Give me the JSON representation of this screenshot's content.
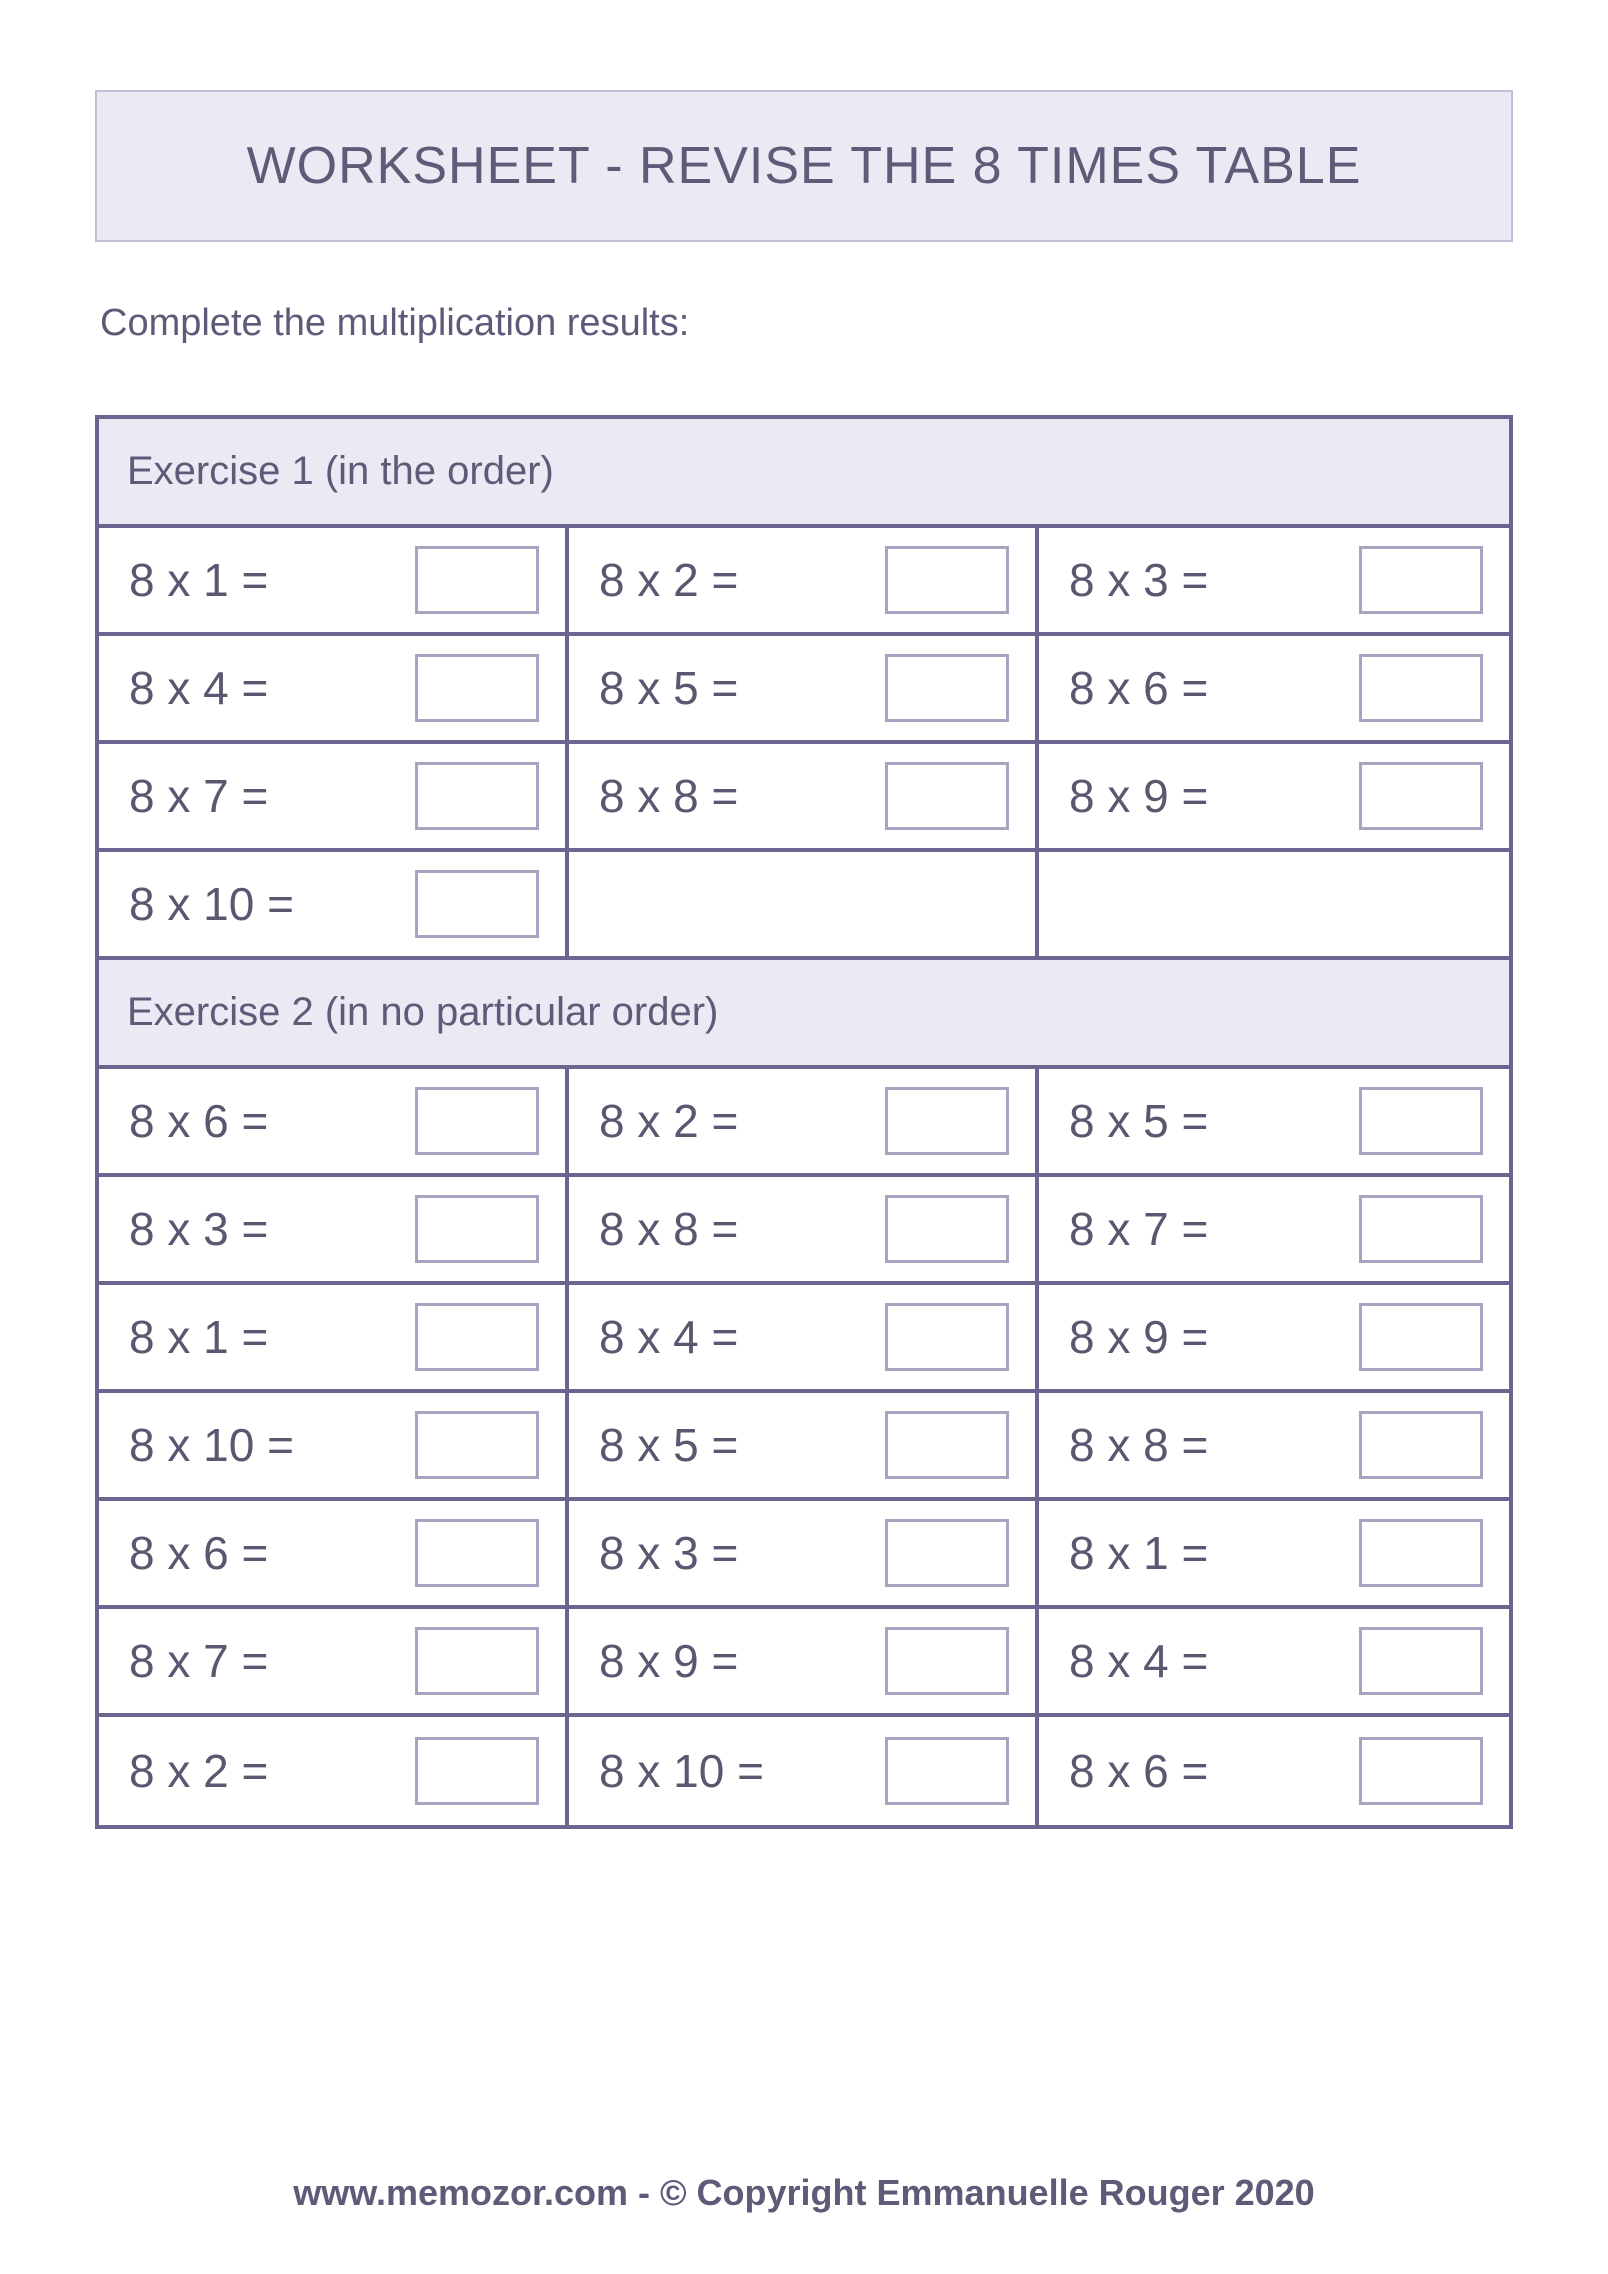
{
  "title": "WORKSHEET - REVISE THE 8 TIMES TABLE",
  "instructions": "Complete the multiplication results:",
  "colors": {
    "header_bg": "#ebe9f4",
    "header_border": "#c2bed8",
    "table_border": "#6c6592",
    "answer_box_border": "#a8a3c1",
    "text": "#5e5b78",
    "background": "#ffffff"
  },
  "typography": {
    "title_fontsize": 52,
    "title_weight": 400,
    "instructions_fontsize": 38,
    "exercise_header_fontsize": 40,
    "expression_fontsize": 46,
    "footer_fontsize": 36,
    "footer_weight": 700,
    "font_family": "Helvetica Neue, Helvetica, Arial, sans-serif"
  },
  "layout": {
    "columns": 3,
    "answer_box_width": 124,
    "answer_box_height": 68,
    "cell_min_height": 108
  },
  "exercises": [
    {
      "header": "Exercise 1 (in the order)",
      "problems": [
        "8 x 1 =",
        "8 x 2 =",
        "8 x 3 =",
        "8 x 4 =",
        "8 x 5 =",
        "8 x 6 =",
        "8 x 7 =",
        "8 x 8 =",
        "8 x 9 =",
        "8 x 10 =",
        "",
        ""
      ]
    },
    {
      "header": "Exercise 2 (in no particular order)",
      "problems": [
        "8 x 6 =",
        "8 x 2 =",
        "8 x 5 =",
        "8 x 3 =",
        "8 x 8 =",
        "8 x 7 =",
        "8 x 1 =",
        "8 x 4 =",
        "8 x 9 =",
        "8 x 10 =",
        "8 x 5 =",
        "8 x 8 =",
        "8 x 6 =",
        "8 x 3 =",
        "8 x 1 =",
        "8 x 7 =",
        "8 x 9 =",
        "8 x 4 =",
        "8 x 2 =",
        "8 x 10 =",
        "8 x 6 ="
      ]
    }
  ],
  "footer": "www.memozor.com - © Copyright Emmanuelle Rouger 2020"
}
